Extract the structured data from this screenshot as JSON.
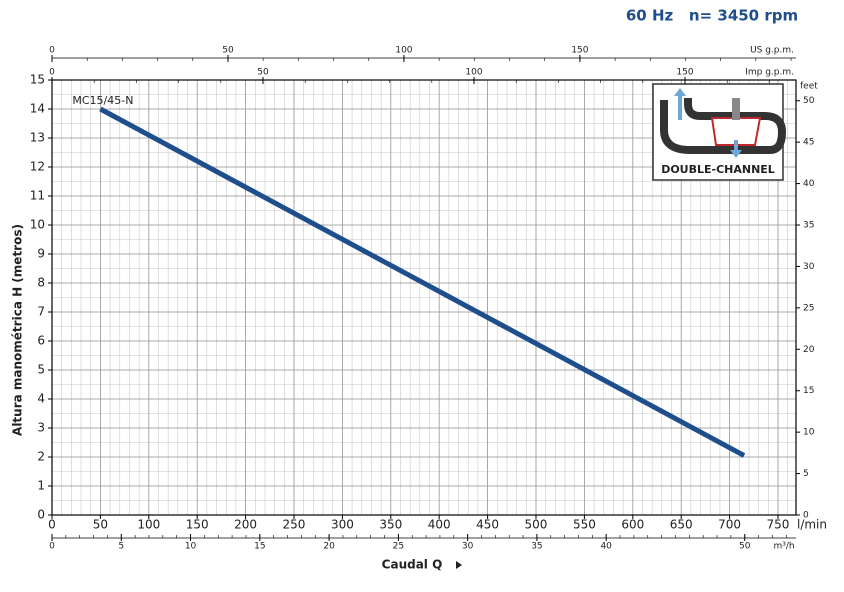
{
  "chart_data": {
    "type": "line",
    "title": "60 Hz   n= 3450 rpm",
    "x_label": "Caudal  Q",
    "y_label": "Altura manométrica H (metros)",
    "x_unit": "l/min",
    "y2_label": "feet",
    "inset_label": "DOUBLE-CHANNEL",
    "x": [
      50,
      715
    ],
    "series": [
      {
        "name": "MC15/45-N",
        "color": "#1f4e8c",
        "values": [
          14,
          2.05
        ]
      }
    ],
    "xlim": [
      0,
      768.6
    ],
    "xticks": [
      0,
      50,
      100,
      150,
      200,
      250,
      300,
      350,
      400,
      450,
      500,
      550,
      600,
      650,
      700,
      750
    ],
    "ylim": [
      0,
      15
    ],
    "yticks": [
      0,
      1,
      2,
      3,
      4,
      5,
      6,
      7,
      8,
      9,
      10,
      11,
      12,
      13,
      14,
      15
    ],
    "y2lim": [
      0,
      52.5
    ],
    "y2ticks": [
      0,
      5,
      10,
      15,
      20,
      25,
      30,
      35,
      40,
      45,
      50
    ],
    "grid": true,
    "minor_grid": {
      "x": 10,
      "y": 0.5
    },
    "top_axes": [
      {
        "label": "US g.p.m.",
        "lim": [
          0,
          211.4
        ],
        "ticks": [
          0,
          50,
          100,
          150
        ]
      },
      {
        "label": "Imp g.p.m.",
        "lim": [
          0,
          176.3
        ],
        "ticks": [
          0,
          50,
          100,
          150
        ]
      }
    ],
    "bottom_axis2": {
      "label": "m³/h",
      "lim": [
        0,
        53.7
      ],
      "ticks": [
        0,
        5,
        10,
        15,
        20,
        25,
        30,
        35,
        40,
        50
      ]
    }
  }
}
